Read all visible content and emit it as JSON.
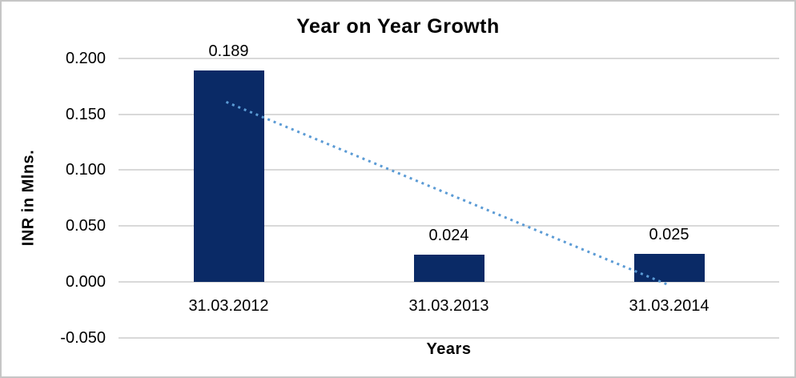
{
  "chart_data": {
    "type": "bar",
    "title": "Year on Year Growth",
    "xlabel": "Years",
    "ylabel": "INR in Mlns.",
    "categories": [
      "31.03.2012",
      "31.03.2013",
      "31.03.2014"
    ],
    "values": [
      0.189,
      0.024,
      0.025
    ],
    "data_labels": [
      "0.189",
      "0.024",
      "0.025"
    ],
    "ylim": [
      -0.05,
      0.2
    ],
    "yticks": [
      {
        "value": 0.2,
        "label": "0.200"
      },
      {
        "value": 0.15,
        "label": "0.150"
      },
      {
        "value": 0.1,
        "label": "0.100"
      },
      {
        "value": 0.05,
        "label": "0.050"
      },
      {
        "value": 0.0,
        "label": "0.000"
      },
      {
        "value": -0.05,
        "label": "-0.050"
      }
    ],
    "grid": "horizontal-only",
    "legend_position": "none",
    "trendline": {
      "type": "linear-dotted",
      "from_value": 0.161,
      "to_value": -0.003,
      "color": "#5B9BD5"
    },
    "colors": {
      "bar": "#0A2A66",
      "gridline": "#D9D9D9",
      "chart_border": "#C6C6C6",
      "text": "#000000"
    }
  }
}
